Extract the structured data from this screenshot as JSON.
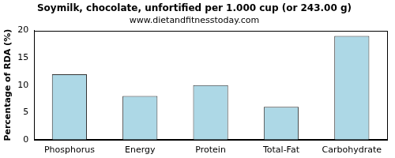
{
  "chart_data": {
    "type": "bar",
    "title": "Soymilk, chocolate, unfortified per 1.000 cup (or 243.00 g)",
    "subtitle": "www.dietandfitnesstoday.com",
    "y_label": "Percentage of RDA (%)",
    "categories": [
      "Phosphorus",
      "Energy",
      "Protein",
      "Total-Fat",
      "Carbohydrate"
    ],
    "values": [
      12,
      8,
      10,
      6,
      19
    ],
    "color": "#add8e6",
    "ylim": [
      0,
      20
    ],
    "yticks": [
      0,
      5,
      10,
      15,
      20
    ],
    "grid": false
  }
}
